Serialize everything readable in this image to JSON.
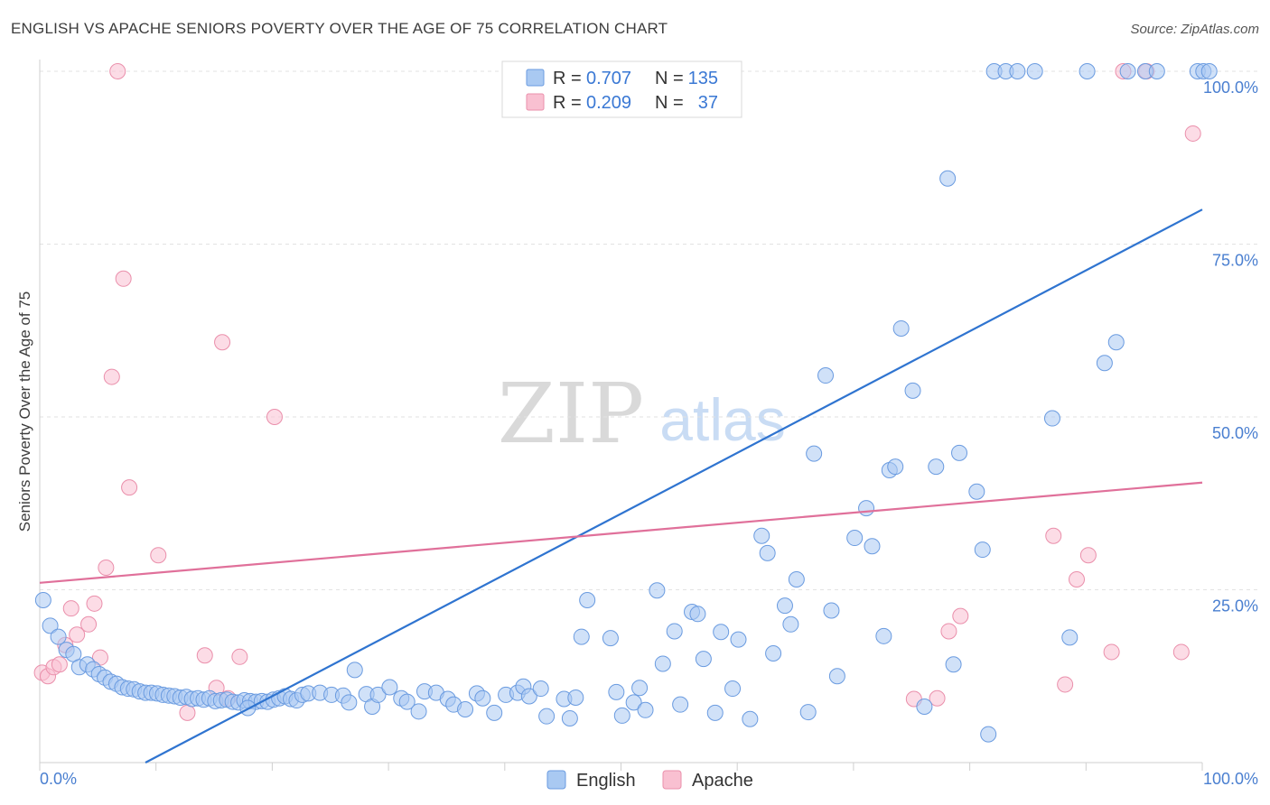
{
  "header": {
    "title": "ENGLISH VS APACHE SENIORS POVERTY OVER THE AGE OF 75 CORRELATION CHART",
    "source": "Source: ZipAtlas.com"
  },
  "watermark": {
    "zip": "ZIP",
    "atlas": "atlas"
  },
  "legend_box": {
    "rows": [
      {
        "r_label": "R = ",
        "r_value": "0.707",
        "n_label": "N = ",
        "n_value": "135",
        "color": "#a9c9f2",
        "stroke": "#6a9be0"
      },
      {
        "r_label": "R = ",
        "r_value": "0.209",
        "n_label": "N = ",
        "n_value": "37",
        "color": "#f9c0d1",
        "stroke": "#ea8fab"
      }
    ]
  },
  "bottom_legend": [
    {
      "label": "English",
      "color": "#a9c9f2",
      "stroke": "#6a9be0"
    },
    {
      "label": "Apache",
      "color": "#f9c0d1",
      "stroke": "#ea8fab"
    }
  ],
  "chart_data": {
    "type": "scatter",
    "title": "ENGLISH VS APACHE SENIORS POVERTY OVER THE AGE OF 75 CORRELATION CHART",
    "xlabel": "",
    "ylabel": "Seniors Poverty Over the Age of 75",
    "xlim": [
      0,
      100
    ],
    "ylim": [
      0,
      100
    ],
    "x_tick_labels": [
      "0.0%",
      "100.0%"
    ],
    "y_ticks": [
      25,
      50,
      75,
      100
    ],
    "y_tick_labels": [
      "25.0%",
      "50.0%",
      "75.0%",
      "100.0%"
    ],
    "grid": true,
    "legend_position": "top-center",
    "series": [
      {
        "name": "English",
        "color": "#6a9be0",
        "fill": "#a9c9f2",
        "trend_color": "#2f74d0",
        "trend": {
          "x": [
            0,
            100
          ],
          "y": [
            -8,
            80
          ]
        },
        "points": [
          [
            0.3,
            23.5
          ],
          [
            0.9,
            19.8
          ],
          [
            1.6,
            18.2
          ],
          [
            2.3,
            16.3
          ],
          [
            2.9,
            15.7
          ],
          [
            3.4,
            13.8
          ],
          [
            4.1,
            14.2
          ],
          [
            4.6,
            13.5
          ],
          [
            5.1,
            12.8
          ],
          [
            5.6,
            12.3
          ],
          [
            6.1,
            11.7
          ],
          [
            6.6,
            11.4
          ],
          [
            7.1,
            10.9
          ],
          [
            7.6,
            10.7
          ],
          [
            8.1,
            10.6
          ],
          [
            8.6,
            10.3
          ],
          [
            9.1,
            10.1
          ],
          [
            9.6,
            10.1
          ],
          [
            10.1,
            10.0
          ],
          [
            10.6,
            9.8
          ],
          [
            11.1,
            9.7
          ],
          [
            11.6,
            9.6
          ],
          [
            12.1,
            9.4
          ],
          [
            12.6,
            9.5
          ],
          [
            13.1,
            9.2
          ],
          [
            13.6,
            9.3
          ],
          [
            14.1,
            9.1
          ],
          [
            14.6,
            9.3
          ],
          [
            15.1,
            8.9
          ],
          [
            15.6,
            9.0
          ],
          [
            16.1,
            9.1
          ],
          [
            16.6,
            8.8
          ],
          [
            17.1,
            8.7
          ],
          [
            17.6,
            9.0
          ],
          [
            18.1,
            8.9
          ],
          [
            18.6,
            8.8
          ],
          [
            17.9,
            7.9
          ],
          [
            19.1,
            8.9
          ],
          [
            19.6,
            8.8
          ],
          [
            20.1,
            9.1
          ],
          [
            20.6,
            9.3
          ],
          [
            21.1,
            9.6
          ],
          [
            21.6,
            9.2
          ],
          [
            22.1,
            9.0
          ],
          [
            22.6,
            9.8
          ],
          [
            23.1,
            10.0
          ],
          [
            24.1,
            10.1
          ],
          [
            25.1,
            9.8
          ],
          [
            26.1,
            9.7
          ],
          [
            26.6,
            8.7
          ],
          [
            27.1,
            13.4
          ],
          [
            28.1,
            9.9
          ],
          [
            28.6,
            8.1
          ],
          [
            29.1,
            9.8
          ],
          [
            30.1,
            10.9
          ],
          [
            31.1,
            9.3
          ],
          [
            31.6,
            8.8
          ],
          [
            32.6,
            7.4
          ],
          [
            33.1,
            10.3
          ],
          [
            34.1,
            10.1
          ],
          [
            35.1,
            9.2
          ],
          [
            35.6,
            8.4
          ],
          [
            36.6,
            7.7
          ],
          [
            37.6,
            10.0
          ],
          [
            38.1,
            9.3
          ],
          [
            39.1,
            7.2
          ],
          [
            40.1,
            9.8
          ],
          [
            41.1,
            10.1
          ],
          [
            41.6,
            11.0
          ],
          [
            42.1,
            9.6
          ],
          [
            43.1,
            10.7
          ],
          [
            43.6,
            6.7
          ],
          [
            45.1,
            9.2
          ],
          [
            45.6,
            6.4
          ],
          [
            46.1,
            9.4
          ],
          [
            46.6,
            18.2
          ],
          [
            47.1,
            23.5
          ],
          [
            49.1,
            18.0
          ],
          [
            49.6,
            10.2
          ],
          [
            50.1,
            6.8
          ],
          [
            51.1,
            8.7
          ],
          [
            51.6,
            10.8
          ],
          [
            52.1,
            7.6
          ],
          [
            53.1,
            24.9
          ],
          [
            53.6,
            14.3
          ],
          [
            54.6,
            19.0
          ],
          [
            55.1,
            8.4
          ],
          [
            56.1,
            21.8
          ],
          [
            56.6,
            21.5
          ],
          [
            57.1,
            15.0
          ],
          [
            58.1,
            7.2
          ],
          [
            58.6,
            18.9
          ],
          [
            59.6,
            10.7
          ],
          [
            60.1,
            17.8
          ],
          [
            61.1,
            6.3
          ],
          [
            62.1,
            32.8
          ],
          [
            62.6,
            30.3
          ],
          [
            63.1,
            15.8
          ],
          [
            64.1,
            22.7
          ],
          [
            64.6,
            20.0
          ],
          [
            65.1,
            26.5
          ],
          [
            66.1,
            7.3
          ],
          [
            66.6,
            44.7
          ],
          [
            67.6,
            56.0
          ],
          [
            68.1,
            22.0
          ],
          [
            68.6,
            12.5
          ],
          [
            70.1,
            32.5
          ],
          [
            71.1,
            36.8
          ],
          [
            71.6,
            31.3
          ],
          [
            72.6,
            18.3
          ],
          [
            73.1,
            42.3
          ],
          [
            73.6,
            42.8
          ],
          [
            74.1,
            62.8
          ],
          [
            75.1,
            53.8
          ],
          [
            76.1,
            8.1
          ],
          [
            77.1,
            42.8
          ],
          [
            78.1,
            84.5
          ],
          [
            78.6,
            14.2
          ],
          [
            79.1,
            44.8
          ],
          [
            80.6,
            39.2
          ],
          [
            81.1,
            30.8
          ],
          [
            81.6,
            4.1
          ],
          [
            82.1,
            100
          ],
          [
            83.1,
            100
          ],
          [
            84.1,
            100
          ],
          [
            85.6,
            100
          ],
          [
            87.1,
            49.8
          ],
          [
            88.6,
            18.1
          ],
          [
            90.1,
            100
          ],
          [
            91.6,
            57.8
          ],
          [
            92.6,
            60.8
          ],
          [
            93.6,
            100
          ],
          [
            95.1,
            100
          ],
          [
            96.1,
            100
          ],
          [
            99.6,
            100
          ],
          [
            100.1,
            100
          ],
          [
            100.6,
            100
          ]
        ]
      },
      {
        "name": "Apache",
        "color": "#ea8fab",
        "fill": "#f9c0d1",
        "trend_color": "#e0709a",
        "trend": {
          "x": [
            0,
            100
          ],
          "y": [
            26,
            40.5
          ]
        },
        "points": [
          [
            0.2,
            13.0
          ],
          [
            0.7,
            12.5
          ],
          [
            1.2,
            13.8
          ],
          [
            1.7,
            14.2
          ],
          [
            2.2,
            17.0
          ],
          [
            2.7,
            22.3
          ],
          [
            3.2,
            18.5
          ],
          [
            4.2,
            20.0
          ],
          [
            4.7,
            23.0
          ],
          [
            5.2,
            15.2
          ],
          [
            5.7,
            28.2
          ],
          [
            6.2,
            55.8
          ],
          [
            6.7,
            100
          ],
          [
            7.2,
            70.0
          ],
          [
            7.7,
            39.8
          ],
          [
            10.2,
            30.0
          ],
          [
            12.7,
            7.2
          ],
          [
            14.2,
            15.5
          ],
          [
            15.2,
            10.8
          ],
          [
            15.7,
            60.8
          ],
          [
            16.2,
            9.3
          ],
          [
            17.2,
            15.3
          ],
          [
            20.2,
            50.0
          ],
          [
            75.2,
            9.2
          ],
          [
            77.2,
            9.3
          ],
          [
            78.2,
            19.0
          ],
          [
            79.2,
            21.2
          ],
          [
            87.2,
            32.8
          ],
          [
            88.2,
            11.3
          ],
          [
            89.2,
            26.5
          ],
          [
            90.2,
            30.0
          ],
          [
            92.2,
            16.0
          ],
          [
            93.2,
            100
          ],
          [
            95.2,
            100
          ],
          [
            98.2,
            16.0
          ],
          [
            99.2,
            91.0
          ]
        ]
      }
    ]
  }
}
